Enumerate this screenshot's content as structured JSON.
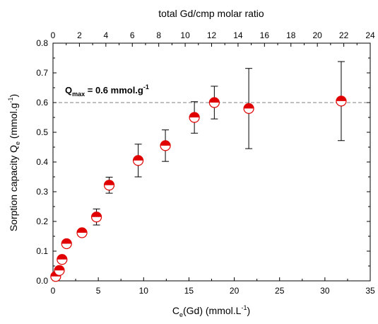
{
  "chart_data": {
    "type": "scatter",
    "x_axis": {
      "label_main": "C",
      "label_sub": "e",
      "label_rest": "(Gd) (mmol.L",
      "label_sup": "-1",
      "label_close": ")",
      "range": [
        0,
        35
      ],
      "ticks": [
        0,
        5,
        10,
        15,
        20,
        25,
        30,
        35
      ]
    },
    "x_top_axis": {
      "label": "total Gd/cmp molar ratio",
      "range": [
        0,
        24
      ],
      "ticks": [
        0,
        2,
        4,
        6,
        8,
        10,
        12,
        14,
        16,
        18,
        20,
        22,
        24
      ],
      "scale_factor": 0.6857
    },
    "y_axis": {
      "label_main": "Sorption capacity Q",
      "label_sub": "e",
      "label_rest": " (mmol.g",
      "label_sup": "-1",
      "label_close": ")",
      "range": [
        0,
        0.8
      ],
      "ticks": [
        "0.0",
        "0.1",
        "0.2",
        "0.3",
        "0.4",
        "0.5",
        "0.6",
        "0.7",
        "0.8"
      ]
    },
    "reference_line": {
      "y": 0.6,
      "label_main": "Q",
      "label_sub": "max",
      "label_rest": " = 0.6 mmol.g",
      "label_sup": "-1"
    },
    "points": [
      {
        "x": 0.3,
        "y": 0.015,
        "err": 0.008
      },
      {
        "x": 0.7,
        "y": 0.035,
        "err": 0.01
      },
      {
        "x": 1.0,
        "y": 0.072,
        "err": 0.01
      },
      {
        "x": 1.5,
        "y": 0.125,
        "err": 0.012
      },
      {
        "x": 3.2,
        "y": 0.162,
        "err": 0.012
      },
      {
        "x": 4.8,
        "y": 0.215,
        "err": 0.027
      },
      {
        "x": 6.2,
        "y": 0.322,
        "err": 0.027
      },
      {
        "x": 9.4,
        "y": 0.405,
        "err": 0.055
      },
      {
        "x": 12.4,
        "y": 0.455,
        "err": 0.053
      },
      {
        "x": 15.6,
        "y": 0.55,
        "err": 0.053
      },
      {
        "x": 17.8,
        "y": 0.6,
        "err": 0.055
      },
      {
        "x": 21.6,
        "y": 0.58,
        "err": 0.135
      },
      {
        "x": 31.8,
        "y": 0.605,
        "err": 0.133
      }
    ],
    "colors": {
      "marker_fill_top": "#e00000",
      "marker_fill_bottom": "#ffffff",
      "marker_edge": "#e00000",
      "error_bar": "#000000",
      "reference_line": "#808080"
    },
    "grid": false,
    "legend": "none"
  }
}
